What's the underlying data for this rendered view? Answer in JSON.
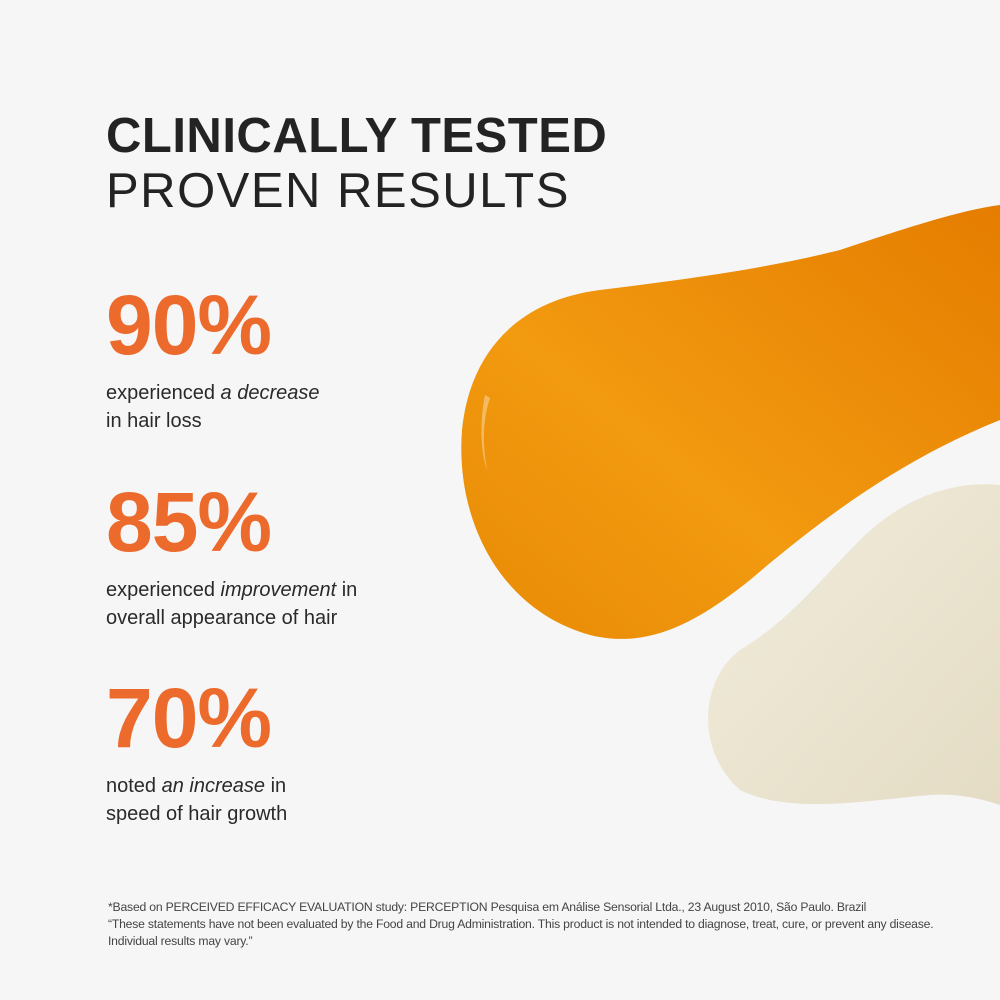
{
  "headline": {
    "line1": "CLINICALLY TESTED",
    "line2": "PROVEN RESULTS"
  },
  "accent_color": "#ec6a2c",
  "stats": [
    {
      "value": "90%",
      "pre": "experienced ",
      "emph": "a decrease",
      "post": "",
      "line2": "in hair loss"
    },
    {
      "value": "85%",
      "pre": "experienced ",
      "emph": "improvement",
      "post": " in",
      "line2": "overall appearance of hair"
    },
    {
      "value": "70%",
      "pre": "noted ",
      "emph": "an increase",
      "post": " in",
      "line2": "speed of hair growth"
    }
  ],
  "footnote": {
    "line1": "*Based on PERCEIVED EFFICACY EVALUATION study: PERCEPTION Pesquisa em Análise Sensorial Ltda., 23 August 2010, São Paulo. Brazil",
    "line2": "“These statements have not been evaluated by the Food and Drug Administration. This product is not intended to diagnose, treat, cure, or prevent any disease. Individual results may vary.”"
  }
}
